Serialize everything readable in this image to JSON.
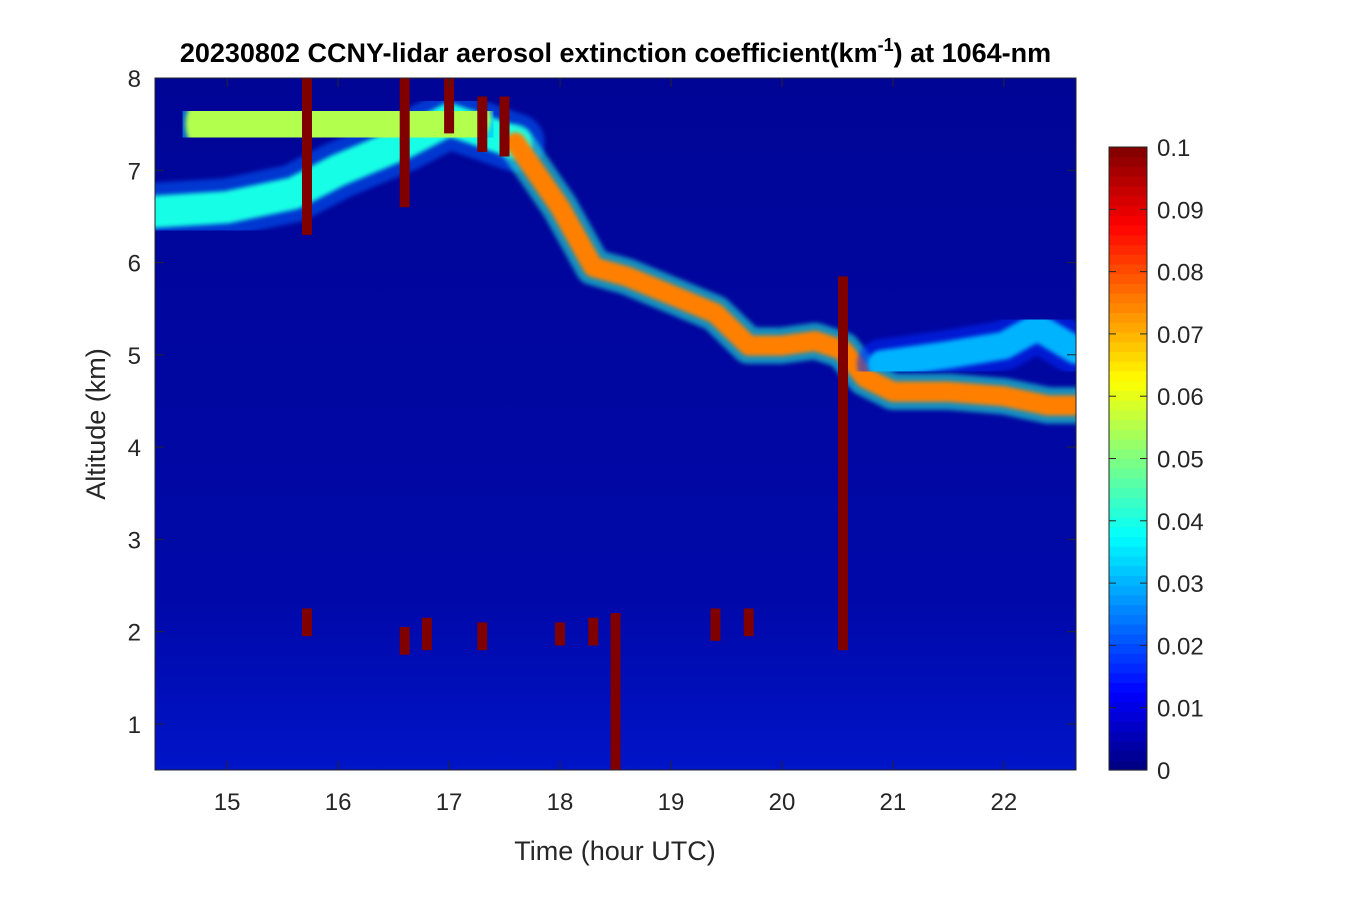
{
  "chart_data": {
    "type": "heatmap",
    "title": {
      "prefix": "20230802 CCNY-lidar aerosol extinction coefficient(km",
      "superscript": "-1",
      "suffix": ") at 1064-nm"
    },
    "xlabel": "Time (hour UTC)",
    "ylabel": "Altitude (km)",
    "xlim": [
      14.35,
      22.65
    ],
    "ylim": [
      0.5,
      8.0
    ],
    "x_ticks": [
      "15",
      "16",
      "17",
      "18",
      "19",
      "20",
      "21",
      "22"
    ],
    "y_ticks": [
      "1",
      "2",
      "3",
      "4",
      "5",
      "6",
      "7",
      "8"
    ],
    "colormap": "jet",
    "color_range": [
      0,
      0.1
    ],
    "colorbar_ticks": [
      "0",
      "0.01",
      "0.02",
      "0.03",
      "0.04",
      "0.05",
      "0.06",
      "0.07",
      "0.08",
      "0.09",
      "0.1"
    ],
    "layers": [
      {
        "name": "upper aerosol layer",
        "points": [
          [
            14.35,
            6.55
          ],
          [
            15.0,
            6.6
          ],
          [
            15.6,
            6.75
          ],
          [
            16.0,
            7.0
          ],
          [
            16.6,
            7.3
          ],
          [
            17.0,
            7.55
          ],
          [
            17.6,
            7.3
          ]
        ],
        "value": 0.04,
        "thickness": 0.35
      },
      {
        "name": "smoke plume upper",
        "points": [
          [
            15.0,
            7.5
          ],
          [
            15.6,
            7.4
          ],
          [
            16.2,
            7.5
          ],
          [
            16.6,
            7.6
          ],
          [
            17.0,
            7.6
          ]
        ],
        "value": 0.055,
        "thickness": 0.9
      },
      {
        "name": "descending layer",
        "points": [
          [
            17.6,
            7.3
          ],
          [
            18.0,
            6.6
          ],
          [
            18.3,
            5.95
          ],
          [
            18.6,
            5.85
          ],
          [
            19.0,
            5.65
          ],
          [
            19.4,
            5.45
          ],
          [
            19.7,
            5.1
          ],
          [
            20.0,
            5.1
          ],
          [
            20.3,
            5.15
          ],
          [
            20.55,
            5.05
          ],
          [
            20.75,
            4.75
          ],
          [
            21.0,
            4.6
          ],
          [
            21.5,
            4.6
          ],
          [
            22.0,
            4.55
          ],
          [
            22.4,
            4.45
          ],
          [
            22.65,
            4.45
          ]
        ],
        "value": 0.075,
        "thickness": 0.22
      },
      {
        "name": "thin upper layer right",
        "points": [
          [
            20.9,
            4.9
          ],
          [
            21.5,
            5.0
          ],
          [
            22.0,
            5.1
          ],
          [
            22.3,
            5.3
          ],
          [
            22.65,
            5.05
          ]
        ],
        "value": 0.03,
        "thickness": 0.3
      }
    ],
    "columns": [
      {
        "x": 15.72,
        "ymin": 6.3,
        "ymax": 8.0,
        "value": 0.1
      },
      {
        "x": 16.6,
        "ymin": 6.6,
        "ymax": 8.0,
        "value": 0.1
      },
      {
        "x": 17.0,
        "ymin": 7.4,
        "ymax": 8.0,
        "value": 0.1
      },
      {
        "x": 17.3,
        "ymin": 7.2,
        "ymax": 7.8,
        "value": 0.1
      },
      {
        "x": 17.5,
        "ymin": 7.15,
        "ymax": 7.8,
        "value": 0.1
      },
      {
        "x": 15.72,
        "ymin": 1.95,
        "ymax": 2.25,
        "value": 0.1
      },
      {
        "x": 16.6,
        "ymin": 1.75,
        "ymax": 2.05,
        "value": 0.1
      },
      {
        "x": 16.8,
        "ymin": 1.8,
        "ymax": 2.15,
        "value": 0.1
      },
      {
        "x": 17.3,
        "ymin": 1.8,
        "ymax": 2.1,
        "value": 0.1
      },
      {
        "x": 18.0,
        "ymin": 1.85,
        "ymax": 2.1,
        "value": 0.1
      },
      {
        "x": 18.3,
        "ymin": 1.85,
        "ymax": 2.15,
        "value": 0.1
      },
      {
        "x": 18.5,
        "ymin": 0.5,
        "ymax": 2.2,
        "value": 0.1
      },
      {
        "x": 19.4,
        "ymin": 1.9,
        "ymax": 2.25,
        "value": 0.1
      },
      {
        "x": 19.7,
        "ymin": 1.95,
        "ymax": 2.25,
        "value": 0.1
      },
      {
        "x": 20.55,
        "ymin": 1.8,
        "ymax": 5.85,
        "value": 0.1
      }
    ]
  }
}
